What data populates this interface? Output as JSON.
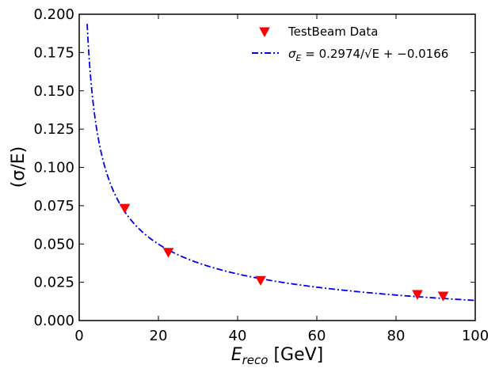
{
  "chart_data": {
    "type": "scatter",
    "title": "",
    "xlabel": {
      "main": "E",
      "sub": "reco",
      "unit": " [GeV]"
    },
    "ylabel": "(σ/E)",
    "xlim": [
      0,
      100
    ],
    "ylim": [
      0,
      0.2
    ],
    "xticks": [
      0,
      20,
      40,
      60,
      80,
      100
    ],
    "yticks": [
      0.0,
      0.025,
      0.05,
      0.075,
      0.1,
      0.125,
      0.15,
      0.175,
      0.2
    ],
    "xtick_labels": [
      "0",
      "20",
      "40",
      "60",
      "80",
      "100"
    ],
    "ytick_labels": [
      "0.000",
      "0.025",
      "0.050",
      "0.075",
      "0.100",
      "0.125",
      "0.150",
      "0.175",
      "0.200"
    ],
    "legend_position": "top-right",
    "series": [
      {
        "name": "TestBeam Data",
        "kind": "points",
        "marker": "triangle-down",
        "color": "#ff0000",
        "x": [
          11.5,
          22.5,
          45.8,
          85.4,
          91.9
        ],
        "y": [
          0.0733,
          0.0445,
          0.0262,
          0.017,
          0.016
        ]
      },
      {
        "name": "σ_E = 0.2974/√E + −0.0166",
        "label_prefix": "σ",
        "label_sub": "E",
        "label_rest": " = 0.2974/√E + −0.0166",
        "kind": "fit",
        "style": "dash-dot",
        "color": "#0000ee",
        "a": 0.2974,
        "b": -0.0166,
        "x_range": [
          2,
          100
        ]
      }
    ]
  }
}
